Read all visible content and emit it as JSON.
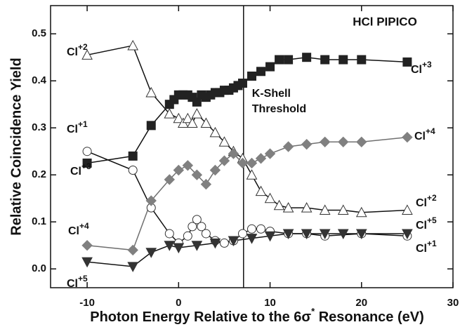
{
  "chart_data": {
    "type": "line",
    "title": "HCl PIPICO",
    "xlabel": [
      "Photon Energy Relative to the 6σ",
      "*",
      " Resonance (eV)"
    ],
    "ylabel": "Relative Coincidence Yield",
    "threshold": {
      "x": 7.1,
      "label": [
        "K-Shell",
        "Threshold"
      ]
    },
    "xlim": [
      -14,
      30
    ],
    "xticks": [
      -10,
      0,
      10,
      20,
      30
    ],
    "ylim": [
      -0.04,
      0.56
    ],
    "yticks": [
      {
        "value": 0,
        "label": "0.0"
      },
      {
        "value": 0.1,
        "label": "0.1"
      },
      {
        "value": 0.2,
        "label": "0.2"
      },
      {
        "value": 0.3,
        "label": "0.3"
      },
      {
        "value": 0.4,
        "label": "0.4"
      },
      {
        "value": 0.5,
        "label": "0.5"
      }
    ],
    "annotations": [
      {
        "text": "Cl",
        "sup": "+2"
      },
      {
        "text": "Cl",
        "sup": "+3"
      },
      {
        "text": "Cl",
        "sup": "+1"
      },
      {
        "text": "Cl",
        "sup": "+3"
      },
      {
        "text": "Cl",
        "sup": "+4"
      },
      {
        "text": "Cl",
        "sup": "+2"
      },
      {
        "text": "Cl",
        "sup": "+5"
      },
      {
        "text": "Cl",
        "sup": "+4"
      },
      {
        "text": "Cl",
        "sup": "+1"
      },
      {
        "text": "Cl",
        "sup": "+5"
      }
    ],
    "series": [
      {
        "marker": "square",
        "color": "#222222",
        "line": "#111111",
        "x": [
          -10,
          -5,
          -3,
          -1,
          -0.5,
          0,
          0.5,
          1,
          1.5,
          2,
          2.5,
          3,
          3.5,
          4,
          4.5,
          5,
          5.5,
          6,
          6.5,
          7,
          8,
          9,
          10,
          11,
          12,
          14,
          16,
          18,
          20,
          25
        ],
        "values": [
          0.225,
          0.24,
          0.305,
          0.35,
          0.36,
          0.37,
          0.37,
          0.37,
          0.365,
          0.355,
          0.37,
          0.365,
          0.37,
          0.375,
          0.375,
          0.38,
          0.38,
          0.385,
          0.39,
          0.395,
          0.41,
          0.42,
          0.43,
          0.445,
          0.445,
          0.45,
          0.445,
          0.445,
          0.445,
          0.44
        ]
      },
      {
        "marker": "triangle",
        "color": "#ffffff",
        "line": "#111111",
        "x": [
          -10,
          -5,
          -3,
          -1,
          0,
          0.5,
          1,
          1.5,
          2,
          3,
          4,
          5,
          6,
          7,
          8,
          9,
          10,
          11,
          12,
          14,
          16,
          18,
          20,
          25
        ],
        "values": [
          0.455,
          0.475,
          0.375,
          0.33,
          0.32,
          0.31,
          0.32,
          0.31,
          0.33,
          0.31,
          0.29,
          0.27,
          0.25,
          0.235,
          0.2,
          0.165,
          0.15,
          0.135,
          0.13,
          0.13,
          0.125,
          0.125,
          0.12,
          0.125
        ]
      },
      {
        "marker": "circle",
        "color": "#ffffff",
        "line": "#111111",
        "x": [
          -10,
          -5,
          -3,
          -1,
          0,
          1,
          1.5,
          2,
          2.5,
          3,
          4,
          5,
          6,
          7,
          8,
          9,
          10,
          12,
          14,
          16,
          20,
          25
        ],
        "values": [
          0.25,
          0.21,
          0.13,
          0.075,
          0.055,
          0.07,
          0.09,
          0.105,
          0.09,
          0.075,
          0.06,
          0.055,
          0.06,
          0.075,
          0.085,
          0.085,
          0.08,
          0.075,
          0.075,
          0.07,
          0.075,
          0.07
        ]
      },
      {
        "marker": "diamond",
        "color": "#808080",
        "line": "#707070",
        "x": [
          -10,
          -5,
          -3,
          -1,
          0,
          1,
          2,
          3,
          4,
          5,
          6,
          7,
          8,
          9,
          10,
          12,
          14,
          16,
          18,
          20,
          25
        ],
        "values": [
          0.05,
          0.04,
          0.145,
          0.19,
          0.21,
          0.22,
          0.2,
          0.18,
          0.21,
          0.23,
          0.245,
          0.225,
          0.225,
          0.235,
          0.245,
          0.26,
          0.265,
          0.27,
          0.27,
          0.27,
          0.28
        ]
      },
      {
        "marker": "down",
        "color": "#333333",
        "line": "#111111",
        "x": [
          -10,
          -5,
          -3,
          -1,
          0,
          2,
          4,
          6,
          8,
          10,
          12,
          14,
          16,
          18,
          20,
          25
        ],
        "values": [
          0.015,
          0.005,
          0.035,
          0.05,
          0.045,
          0.05,
          0.055,
          0.06,
          0.065,
          0.07,
          0.075,
          0.075,
          0.075,
          0.075,
          0.075,
          0.075
        ]
      }
    ]
  }
}
